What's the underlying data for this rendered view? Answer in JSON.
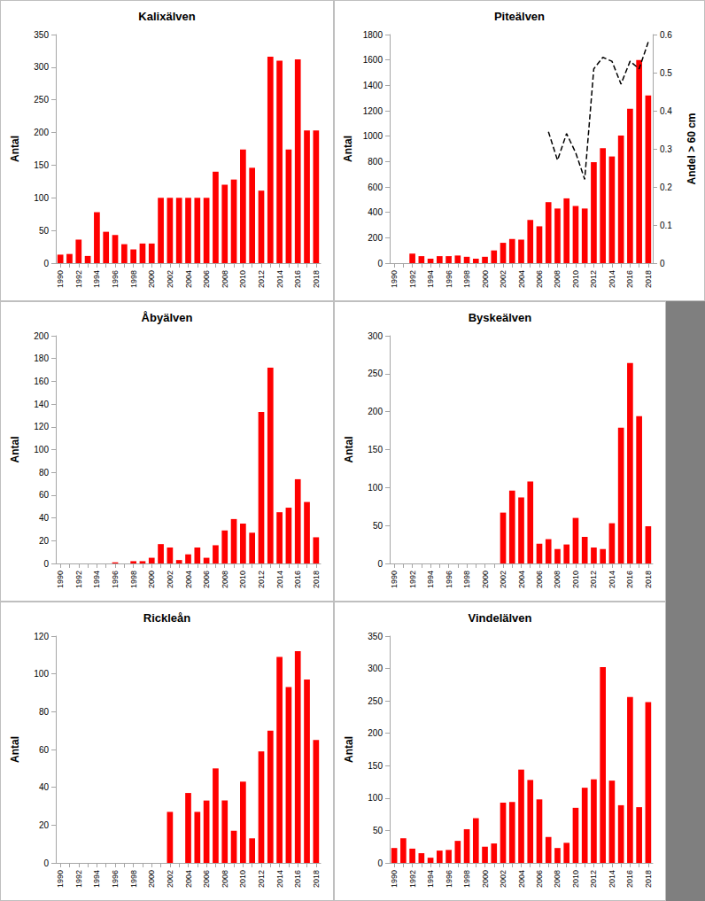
{
  "chart_data": [
    {
      "type": "bar",
      "title": "Kalixälven",
      "ylabel": "Antal",
      "color": "#ff0000",
      "grid": false,
      "categories": [
        "1990",
        null,
        "1992",
        null,
        "1994",
        null,
        "1996",
        null,
        "1998",
        null,
        "2000",
        null,
        "2002",
        null,
        "2004",
        null,
        "2006",
        null,
        "2008",
        null,
        "2010",
        null,
        "2012",
        null,
        "2014",
        null,
        "2016",
        null,
        "2018"
      ],
      "values": [
        13,
        14,
        36,
        11,
        78,
        48,
        43,
        29,
        21,
        30,
        30,
        100,
        100,
        100,
        100,
        100,
        100,
        140,
        120,
        128,
        174,
        146,
        111,
        316,
        310,
        174,
        312,
        203,
        203
      ],
      "ylim": [
        0,
        350
      ],
      "yticks": [
        0,
        50,
        100,
        150,
        200,
        250,
        300,
        350
      ]
    },
    {
      "type": "bar",
      "title": "Piteälven",
      "ylabel": "Antal",
      "y2label": "Andel > 60 cm",
      "grid": false,
      "categories": [
        "1990",
        null,
        "1992",
        null,
        "1994",
        null,
        "1996",
        null,
        "1998",
        null,
        "2000",
        null,
        "2002",
        null,
        "2004",
        null,
        "2006",
        null,
        "2008",
        null,
        "2010",
        null,
        "2012",
        null,
        "2014",
        null,
        "2016",
        null,
        "2018"
      ],
      "series": [
        {
          "type": "bar",
          "color": "#ff0000",
          "values": [
            null,
            null,
            75,
            55,
            35,
            55,
            55,
            60,
            50,
            35,
            50,
            100,
            160,
            190,
            185,
            340,
            290,
            480,
            430,
            510,
            450,
            430,
            795,
            905,
            840,
            1005,
            1215,
            1600,
            1320
          ]
        },
        {
          "type": "line",
          "axis": "y2",
          "color": "#000000",
          "line_style": "dashed",
          "marker": "none",
          "values": [
            null,
            null,
            null,
            null,
            null,
            null,
            null,
            null,
            null,
            null,
            null,
            null,
            null,
            null,
            null,
            null,
            null,
            0.345,
            0.27,
            0.34,
            0.29,
            0.22,
            0.51,
            0.54,
            0.53,
            0.47,
            0.53,
            0.51,
            0.58
          ]
        }
      ],
      "ylim": [
        0,
        1800
      ],
      "yticks": [
        0,
        200,
        400,
        600,
        800,
        1000,
        1200,
        1400,
        1600,
        1800
      ],
      "y2lim": [
        0,
        0.6
      ],
      "y2ticks": [
        0,
        0.1,
        0.2,
        0.3,
        0.4,
        0.5,
        0.6
      ]
    },
    {
      "type": "bar",
      "title": "Åbyälven",
      "ylabel": "Antal",
      "color": "#ff0000",
      "grid": false,
      "categories": [
        "1990",
        null,
        "1992",
        null,
        "1994",
        null,
        "1996",
        null,
        "1998",
        null,
        "2000",
        null,
        "2002",
        null,
        "2004",
        null,
        "2006",
        null,
        "2008",
        null,
        "2010",
        null,
        "2012",
        null,
        "2014",
        null,
        "2016",
        null,
        "2018"
      ],
      "values": [
        0,
        0,
        0,
        0,
        0,
        0,
        1,
        0,
        2,
        2,
        5,
        17,
        14,
        3,
        8,
        14,
        5,
        16,
        29,
        39,
        35,
        27,
        133,
        172,
        45,
        49,
        74,
        54,
        23
      ],
      "ylim": [
        0,
        200
      ],
      "yticks": [
        0,
        20,
        40,
        60,
        80,
        100,
        120,
        140,
        160,
        180,
        200
      ]
    },
    {
      "type": "bar",
      "title": "Byskeälven",
      "ylabel": "Antal",
      "color": "#ff0000",
      "grid": false,
      "categories": [
        "1990",
        null,
        "1992",
        null,
        "1994",
        null,
        "1996",
        null,
        "1998",
        null,
        "2000",
        null,
        "2002",
        null,
        "2004",
        null,
        "2006",
        null,
        "2008",
        null,
        "2010",
        null,
        "2012",
        null,
        "2014",
        null,
        "2016",
        null,
        "2018"
      ],
      "values": [
        null,
        null,
        null,
        null,
        null,
        null,
        null,
        null,
        null,
        null,
        null,
        null,
        67,
        96,
        87,
        108,
        26,
        32,
        19,
        25,
        60,
        35,
        21,
        19,
        53,
        179,
        264,
        194,
        49
      ],
      "ylim": [
        0,
        300
      ],
      "yticks": [
        0,
        50,
        100,
        150,
        200,
        250,
        300
      ]
    },
    {
      "type": "bar",
      "title": "Rickleån",
      "ylabel": "Antal",
      "color": "#ff0000",
      "grid": false,
      "categories": [
        "1990",
        null,
        "1992",
        null,
        "1994",
        null,
        "1996",
        null,
        "1998",
        null,
        "2000",
        null,
        "2002",
        null,
        "2004",
        null,
        "2006",
        null,
        "2008",
        null,
        "2010",
        null,
        "2012",
        null,
        "2014",
        null,
        "2016",
        null,
        "2018"
      ],
      "values": [
        null,
        null,
        null,
        null,
        null,
        null,
        null,
        null,
        null,
        null,
        null,
        null,
        27,
        null,
        37,
        27,
        33,
        50,
        33,
        17,
        43,
        13,
        59,
        70,
        109,
        93,
        112,
        97,
        65
      ],
      "ylim": [
        0,
        120
      ],
      "yticks": [
        0,
        20,
        40,
        60,
        80,
        100,
        120
      ]
    },
    {
      "type": "bar",
      "title": "Vindelälven",
      "ylabel": "Antal",
      "color": "#ff0000",
      "grid": false,
      "categories": [
        "1990",
        null,
        "1992",
        null,
        "1994",
        null,
        "1996",
        null,
        "1998",
        null,
        "2000",
        null,
        "2002",
        null,
        "2004",
        null,
        "2006",
        null,
        "2008",
        null,
        "2010",
        null,
        "2012",
        null,
        "2014",
        null,
        "2016",
        null,
        "2018"
      ],
      "values": [
        23,
        38,
        22,
        15,
        8,
        19,
        20,
        34,
        52,
        69,
        25,
        30,
        93,
        94,
        144,
        128,
        98,
        40,
        23,
        31,
        85,
        116,
        129,
        302,
        127,
        89,
        256,
        86,
        248
      ],
      "ylim": [
        0,
        350
      ],
      "yticks": [
        0,
        50,
        100,
        150,
        200,
        250,
        300,
        350
      ]
    }
  ]
}
